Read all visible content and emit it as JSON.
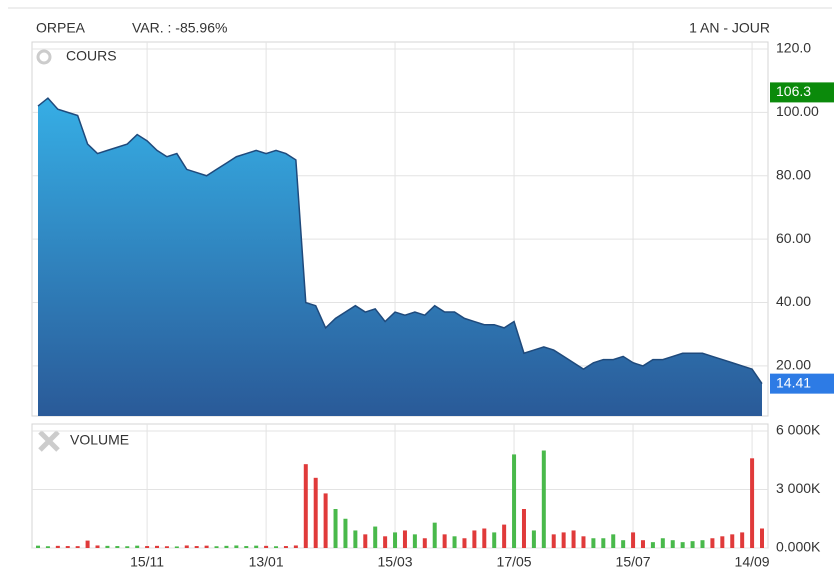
{
  "chart_data": [
    {
      "type": "area",
      "name": "ORPEA",
      "change": "VAR. : -85.96%",
      "period": "1 AN - JOUR",
      "panel_label": "COURS",
      "categories": [
        null,
        null,
        null,
        null,
        null,
        null,
        null,
        null,
        null,
        null,
        null,
        "15/11",
        null,
        null,
        null,
        null,
        null,
        null,
        null,
        null,
        null,
        null,
        null,
        "13/01",
        null,
        null,
        null,
        null,
        null,
        null,
        null,
        null,
        null,
        null,
        null,
        null,
        "15/03",
        null,
        null,
        null,
        null,
        null,
        null,
        null,
        null,
        null,
        null,
        null,
        "17/05",
        null,
        null,
        null,
        null,
        null,
        null,
        null,
        null,
        null,
        null,
        null,
        "15/07",
        null,
        null,
        null,
        null,
        null,
        null,
        null,
        null,
        null,
        null,
        null,
        "14/09",
        null
      ],
      "values": [
        102,
        104.5,
        101,
        100,
        99,
        90,
        87,
        88,
        89,
        90,
        93,
        91,
        88,
        86,
        87,
        82,
        81,
        80,
        82,
        84,
        86,
        87,
        88,
        87,
        88,
        87,
        85,
        40,
        39,
        32,
        35,
        37,
        39,
        37,
        38,
        34,
        37,
        36,
        37,
        36,
        39,
        37,
        37,
        35,
        34,
        33,
        33,
        32,
        34,
        24,
        25,
        26,
        25,
        23,
        21,
        19,
        21,
        22,
        22,
        23,
        21,
        20,
        22,
        22,
        23,
        24,
        24,
        24,
        23,
        22,
        21,
        20,
        19,
        14.41
      ],
      "color": "#2f6fae",
      "ylim": [
        4.2,
        122.2
      ],
      "yticks": [
        {
          "value": 20,
          "label": "20.00"
        },
        {
          "value": 40,
          "label": "40.00"
        },
        {
          "value": 60,
          "label": "60.00"
        },
        {
          "value": 80,
          "label": "80.00"
        },
        {
          "value": 100,
          "label": "100.00"
        },
        {
          "value": 120,
          "label": "120.0"
        }
      ],
      "markers": [
        {
          "value": 106.3,
          "color": "#0b8a0b"
        },
        {
          "value": 14.41,
          "color": "#2d7be5"
        }
      ],
      "grid": true
    },
    {
      "type": "bar",
      "panel_label": "VOLUME",
      "values": [
        120,
        90,
        110,
        100,
        95,
        380,
        130,
        110,
        100,
        90,
        120,
        100,
        110,
        90,
        80,
        130,
        100,
        120,
        90,
        110,
        130,
        100,
        120,
        110,
        90,
        100,
        130,
        4300,
        3600,
        2800,
        2000,
        1500,
        900,
        700,
        1100,
        600,
        800,
        900,
        700,
        500,
        1300,
        700,
        600,
        500,
        900,
        1000,
        800,
        1200,
        4800,
        2000,
        900,
        5000,
        700,
        800,
        900,
        600,
        500,
        500,
        700,
        400,
        800,
        400,
        300,
        500,
        400,
        300,
        350,
        400,
        500,
        600,
        700,
        800,
        4600,
        1000
      ],
      "up_color": "#49b94b",
      "down_color": "#e03a3a",
      "ylim": [
        0,
        6360
      ],
      "yticks": [
        {
          "value": 0,
          "label": "0.000K"
        },
        {
          "value": 3000,
          "label": "3 000K"
        },
        {
          "value": 6000,
          "label": "6 000K"
        }
      ],
      "grid": true
    }
  ]
}
